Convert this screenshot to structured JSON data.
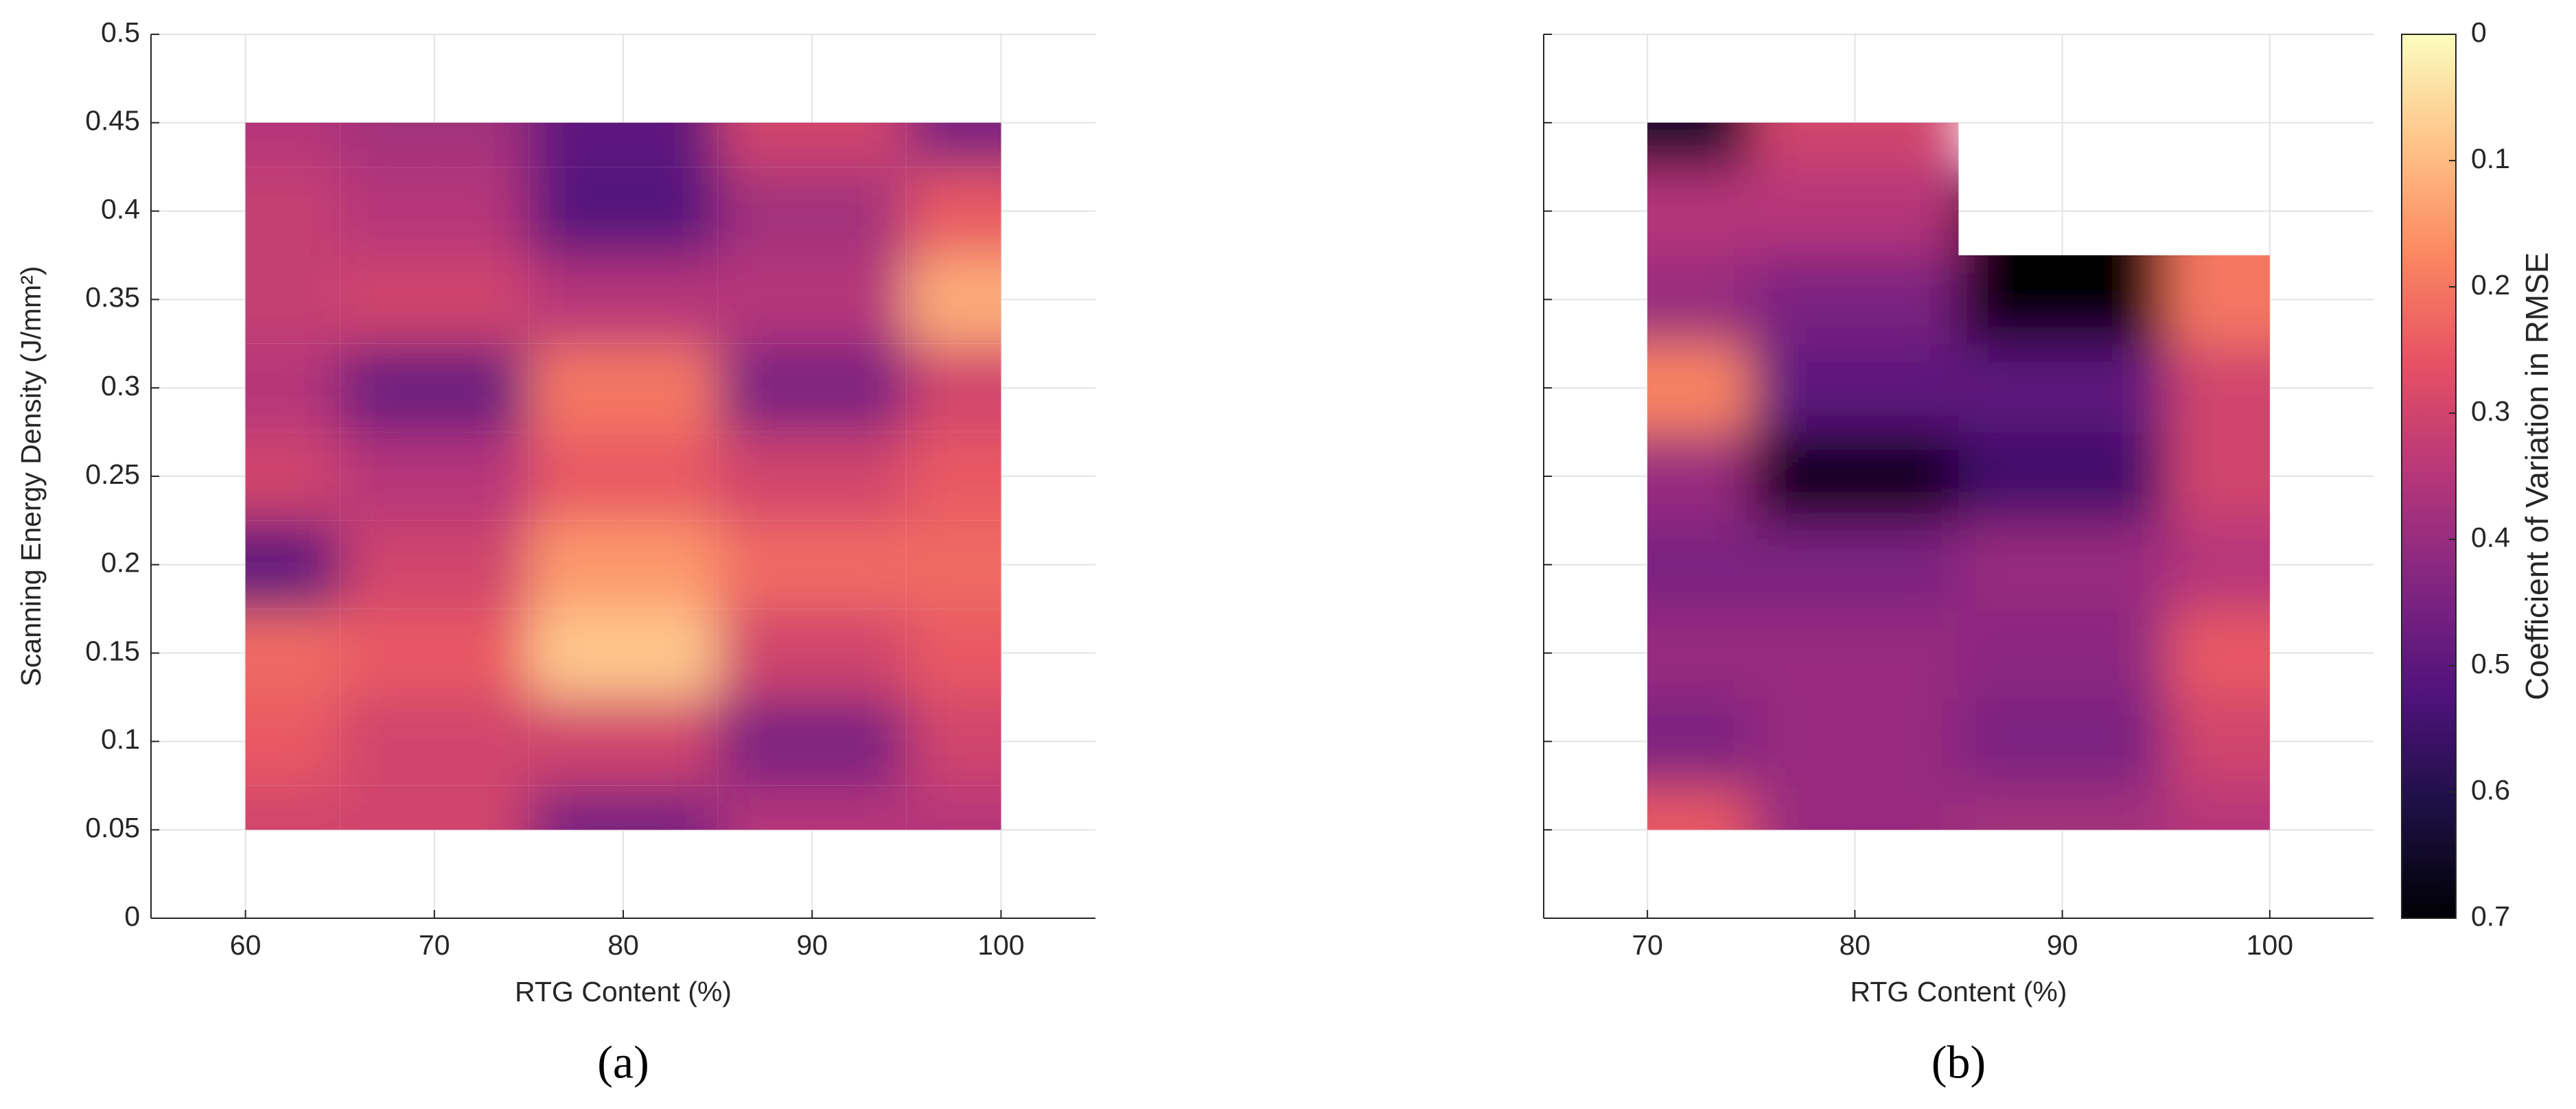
{
  "chart_data": [
    {
      "type": "heatmap",
      "panel_label": "(a)",
      "xlabel": "RTG Content (%)",
      "ylabel": "Scanning  Energy  Density  (J/mm²)",
      "x": [
        60,
        70,
        80,
        90,
        100
      ],
      "y": [
        0.05,
        0.1,
        0.15,
        0.2,
        0.25,
        0.3,
        0.35,
        0.4,
        0.45
      ],
      "z": [
        [
          0.3,
          0.3,
          0.45,
          0.35,
          0.35
        ],
        [
          0.25,
          0.3,
          0.3,
          0.45,
          0.3
        ],
        [
          0.22,
          0.25,
          0.08,
          0.3,
          0.25
        ],
        [
          0.5,
          0.3,
          0.15,
          0.22,
          0.22
        ],
        [
          0.3,
          0.35,
          0.25,
          0.3,
          0.25
        ],
        [
          0.35,
          0.48,
          0.2,
          0.45,
          0.3
        ],
        [
          0.32,
          0.3,
          0.35,
          0.35,
          0.12
        ],
        [
          0.32,
          0.35,
          0.52,
          0.38,
          0.25
        ],
        [
          0.35,
          0.38,
          0.5,
          0.3,
          0.45
        ]
      ],
      "xlim": [
        55,
        105
      ],
      "xticks": [
        60,
        70,
        80,
        90,
        100
      ],
      "ylim": [
        0,
        0.5
      ],
      "yticks": [
        0,
        0.05,
        0.1,
        0.15,
        0.2,
        0.25,
        0.3,
        0.35,
        0.4,
        0.45,
        0.5
      ],
      "grid": true,
      "clim": [
        0,
        0.7
      ],
      "colormap": [
        "#fcfdbf",
        "#fec287",
        "#fb8761",
        "#e55064",
        "#b5367a",
        "#812581",
        "#4f127b",
        "#1c1044",
        "#000004"
      ]
    },
    {
      "type": "heatmap",
      "panel_label": "(b)",
      "xlabel": "RTG Content (%)",
      "x": [
        70,
        80,
        90,
        100
      ],
      "y": [
        0.05,
        0.1,
        0.15,
        0.2,
        0.25,
        0.3,
        0.35,
        0.4,
        0.45
      ],
      "z": [
        [
          0.25,
          0.4,
          0.38,
          0.35
        ],
        [
          0.45,
          0.4,
          0.45,
          0.3
        ],
        [
          0.4,
          0.4,
          0.42,
          0.25
        ],
        [
          0.45,
          0.45,
          0.4,
          0.35
        ],
        [
          0.4,
          0.68,
          0.55,
          0.3
        ],
        [
          0.18,
          0.5,
          0.5,
          0.3
        ],
        [
          0.4,
          0.45,
          0.7,
          0.2
        ],
        [
          0.35,
          0.35,
          null,
          null
        ],
        [
          0.65,
          0.3,
          null,
          null
        ]
      ],
      "xlim": [
        65,
        105
      ],
      "xticks": [
        70,
        80,
        90,
        100
      ],
      "ylim": [
        0,
        0.5
      ],
      "yticks": [
        0,
        0.05,
        0.1,
        0.15,
        0.2,
        0.25,
        0.3,
        0.35,
        0.4,
        0.45,
        0.5
      ],
      "show_ytick_labels": false,
      "grid": true,
      "clim": [
        0,
        0.7
      ],
      "colormap": [
        "#fcfdbf",
        "#fec287",
        "#fb8761",
        "#e55064",
        "#b5367a",
        "#812581",
        "#4f127b",
        "#1c1044",
        "#000004"
      ],
      "colorbar": {
        "label": "Coefficient of Variation in RMSE",
        "ticks": [
          0,
          0.1,
          0.2,
          0.3,
          0.4,
          0.5,
          0.6,
          0.7
        ],
        "direction": "reverse"
      }
    }
  ]
}
